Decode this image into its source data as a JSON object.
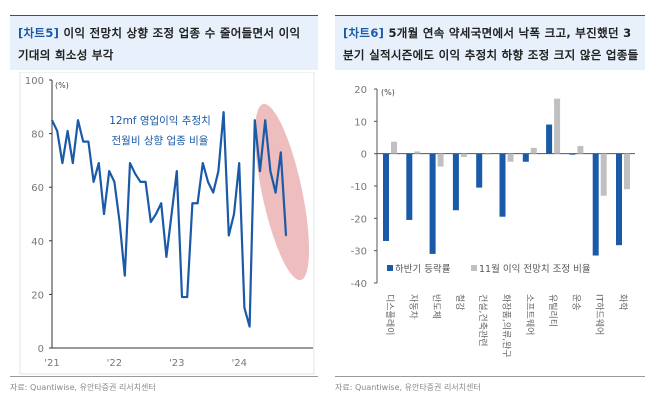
{
  "left": {
    "tag": "[차트5]",
    "title": "이익 전망치 상향 조정 업종 수 줄어들면서 이익 기대의 희소성 부각",
    "source": "자료: Quantiwise, 유안타증권 리서치센터",
    "chart_data": {
      "type": "line",
      "ylabel": "(%)",
      "ylim": [
        0,
        100
      ],
      "yticks": [
        0,
        20,
        40,
        60,
        80,
        100
      ],
      "xticks": [
        "'21",
        "'22",
        "'23",
        "'24"
      ],
      "annotation": [
        "12mf 영업이익 추정치",
        "전월비 상향 업종 비율"
      ],
      "color": "#1a5aa6",
      "highlight_color": "#e8a8a8",
      "values": [
        85,
        81,
        69,
        81,
        69,
        85,
        77,
        77,
        62,
        69,
        50,
        66,
        62,
        47,
        27,
        69,
        65,
        62,
        62,
        47,
        50,
        54,
        34,
        50,
        66,
        19,
        19,
        54,
        54,
        69,
        62,
        58,
        66,
        88,
        42,
        50,
        69,
        15,
        8,
        85,
        66,
        85,
        66,
        58,
        73,
        42
      ]
    }
  },
  "right": {
    "tag": "[차트6]",
    "title": "5개월 연속 약세국면에서 낙폭 크고, 부진했던 3분기 실적시즌에도 이익 추정치 하향 조정 크지 않은 업종들",
    "source": "자료: Quantiwise, 유안타증권 리서치센터",
    "chart_data": {
      "type": "bar",
      "ylabel": "(%)",
      "ylim": [
        -40,
        20
      ],
      "yticks": [
        -40,
        -30,
        -20,
        -10,
        0,
        10,
        20
      ],
      "categories": [
        "디스플레이",
        "자동차",
        "반도체",
        "철강",
        "건설,건축관련",
        "화장품,의류,완구",
        "소프트웨어",
        "유틸리티",
        "운송",
        "IT하드웨어",
        "화학"
      ],
      "series": [
        {
          "name": "하반기 등락률",
          "color": "#1a5aa6",
          "values": [
            -27,
            -20.5,
            -31,
            -17.5,
            -10.5,
            -19.5,
            -2.5,
            9,
            -0.3,
            -31.5,
            -28.3
          ]
        },
        {
          "name": "11월 이익 전망치 조정 비율",
          "color": "#c0c0c0",
          "values": [
            3.7,
            0.7,
            -4,
            -1,
            -0.3,
            -2.5,
            1.8,
            17,
            2.4,
            -13,
            -11
          ]
        }
      ]
    }
  }
}
